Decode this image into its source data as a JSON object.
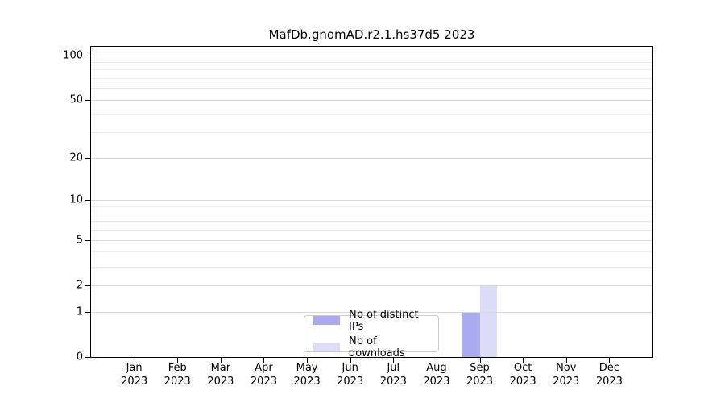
{
  "figure": {
    "background": "#ffffff"
  },
  "chart_data": {
    "type": "bar",
    "title": "MafDb.gnomAD.r2.1.hs37d5 2023",
    "categories": [
      "Jan",
      "Feb",
      "Mar",
      "Apr",
      "May",
      "Jun",
      "Jul",
      "Aug",
      "Sep",
      "Oct",
      "Nov",
      "Dec"
    ],
    "x_year_label": "2023",
    "series": [
      {
        "name": "Nb of distinct IPs",
        "color": "#aaaaf0",
        "values": [
          0,
          0,
          0,
          0,
          0,
          0,
          0,
          0,
          1,
          0,
          0,
          0
        ]
      },
      {
        "name": "Nb of downloads",
        "color": "#dcdcf8",
        "values": [
          0,
          0,
          0,
          0,
          0,
          0,
          0,
          0,
          2,
          0,
          0,
          0
        ]
      }
    ],
    "xlabel": "",
    "ylabel": "",
    "yscale": "log1p",
    "ylim": [
      0,
      114
    ],
    "yticks": [
      0,
      1,
      2,
      5,
      10,
      20,
      50,
      100
    ],
    "minor_gridlines": [
      3,
      4,
      6,
      7,
      8,
      9,
      30,
      40,
      60,
      70,
      80,
      90
    ],
    "grid": true,
    "legend_position": "lower center",
    "axis_colors": {
      "spine": "#000000",
      "major_grid": "#d9d9d9",
      "minor_grid": "#ededed"
    }
  }
}
